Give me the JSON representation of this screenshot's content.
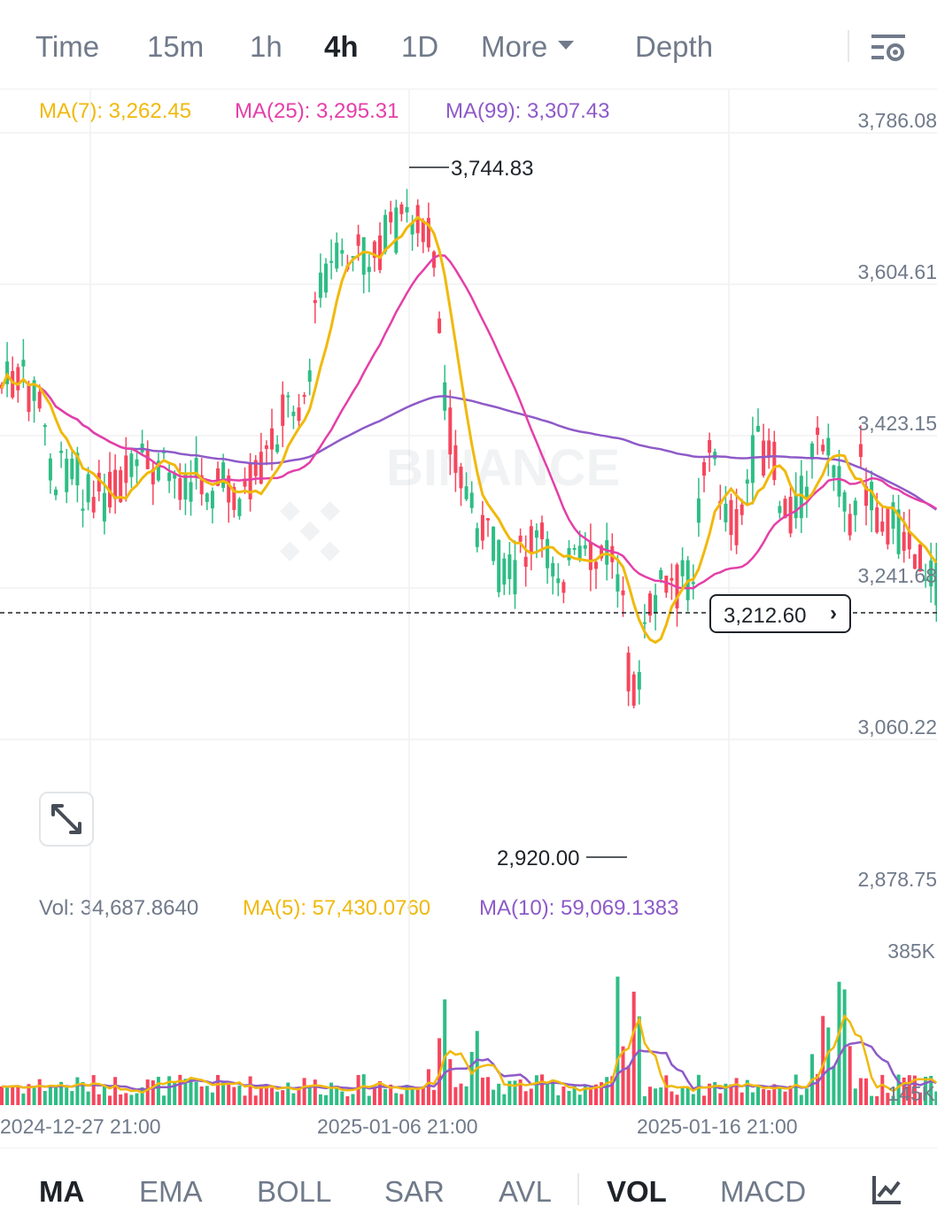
{
  "timeframes": [
    "Time",
    "15m",
    "1h",
    "4h",
    "1D",
    "More",
    "Depth"
  ],
  "active_timeframe": "4h",
  "legend": {
    "ma7": "MA(7): 3,262.45",
    "ma25": "MA(25): 3,295.31",
    "ma99": "MA(99): 3,307.43"
  },
  "colors": {
    "up": "#2ebd85",
    "down": "#f6465d",
    "ma7": "#f0b90b",
    "ma25": "#e43fa8",
    "ma99": "#8e5ac8",
    "grid": "#f0f1f3",
    "text_secondary": "#707a8a"
  },
  "price_axis": [
    "3,786.08",
    "3,604.61",
    "3,423.15",
    "3,241.68",
    "3,060.22",
    "2,878.75"
  ],
  "high_label": "3,744.83",
  "low_label": "2,920.00",
  "last_price": "3,212.60",
  "watermark": "BINANCE",
  "volume_legend": {
    "vol": "Vol: 34,687.8640",
    "ma5": "MA(5): 57,430.0760",
    "ma10": "MA(10): 59,069.1383"
  },
  "volume_axis": [
    "385K",
    "145K"
  ],
  "time_axis": [
    "2024-12-27 21:00",
    "2025-01-06 21:00",
    "2025-01-16 21:00"
  ],
  "indicators_main": [
    "MA",
    "EMA",
    "BOLL",
    "SAR",
    "AVL"
  ],
  "indicators_sub": [
    "VOL",
    "MACD"
  ],
  "active_main": "MA",
  "active_sub": "VOL",
  "icons": [
    "chart-settings-icon",
    "expand-icon",
    "chevron-right-icon",
    "indicator-settings-icon",
    "binance-logo-icon"
  ]
}
